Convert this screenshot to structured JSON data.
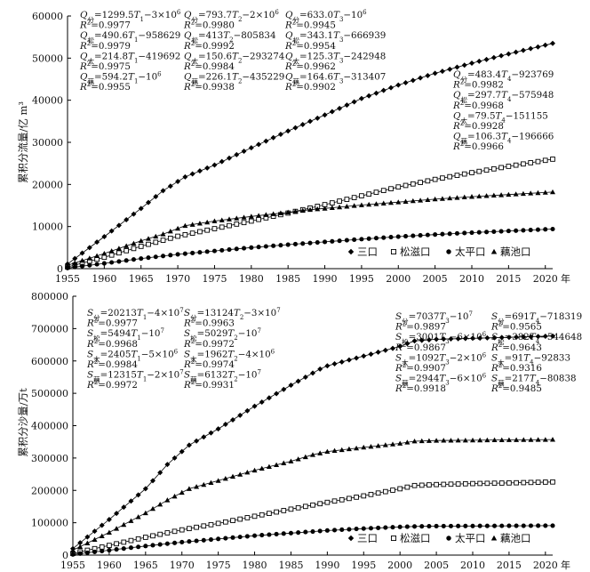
{
  "chart_data": [
    {
      "type": "scatter",
      "ylabel": "累积分流量/亿 m³",
      "ylim": [
        0,
        60000
      ],
      "yticks": [
        "0",
        "10000",
        "20000",
        "30000",
        "40000",
        "50000",
        "60000"
      ],
      "xlim": [
        1955,
        2021
      ],
      "xticks": [
        "1955",
        "1960",
        "1965",
        "1970",
        "1975",
        "1980",
        "1985",
        "1990",
        "1995",
        "2000",
        "2005",
        "2010",
        "2015",
        "2020"
      ],
      "x_unit": "年",
      "legend_position": "bottom-right",
      "legend": [
        "三口",
        "松滋口",
        "太平口",
        "藕池口"
      ],
      "series": [
        {
          "name": "三口",
          "marker": "diamond",
          "points": [
            [
              1955,
              1100
            ],
            [
              1960,
              7600
            ],
            [
              1965,
              14300
            ],
            [
              1968,
              18500
            ],
            [
              1971,
              21800
            ],
            [
              1975,
              24600
            ],
            [
              1980,
              28700
            ],
            [
              1985,
              32700
            ],
            [
              1990,
              36500
            ],
            [
              1995,
              40400
            ],
            [
              2000,
              43600
            ],
            [
              2005,
              46400
            ],
            [
              2010,
              48800
            ],
            [
              2015,
              51000
            ],
            [
              2021,
              53500
            ]
          ]
        },
        {
          "name": "松滋口",
          "marker": "square",
          "points": [
            [
              1955,
              400
            ],
            [
              1960,
              2700
            ],
            [
              1965,
              5300
            ],
            [
              1970,
              7700
            ],
            [
              1975,
              9500
            ],
            [
              1980,
              11300
            ],
            [
              1985,
              13200
            ],
            [
              1990,
              15200
            ],
            [
              1995,
              17300
            ],
            [
              2000,
              19400
            ],
            [
              2005,
              21200
            ],
            [
              2010,
              22800
            ],
            [
              2015,
              24300
            ],
            [
              2021,
              26000
            ]
          ]
        },
        {
          "name": "太平口",
          "marker": "circle",
          "points": [
            [
              1955,
              150
            ],
            [
              1960,
              1250
            ],
            [
              1965,
              2400
            ],
            [
              1970,
              3400
            ],
            [
              1975,
              4200
            ],
            [
              1980,
              5000
            ],
            [
              1985,
              5700
            ],
            [
              1990,
              6350
            ],
            [
              1995,
              7000
            ],
            [
              2000,
              7600
            ],
            [
              2005,
              8100
            ],
            [
              2010,
              8550
            ],
            [
              2015,
              8950
            ],
            [
              2021,
              9400
            ]
          ]
        },
        {
          "name": "藕池口",
          "marker": "triangle",
          "points": [
            [
              1955,
              800
            ],
            [
              1960,
              3600
            ],
            [
              1965,
              6600
            ],
            [
              1968,
              8200
            ],
            [
              1971,
              10200
            ],
            [
              1975,
              11300
            ],
            [
              1980,
              12400
            ],
            [
              1985,
              13400
            ],
            [
              1988,
              14000
            ],
            [
              1990,
              14300
            ],
            [
              1995,
              15100
            ],
            [
              2000,
              15800
            ],
            [
              2005,
              16500
            ],
            [
              2010,
              17100
            ],
            [
              2015,
              17600
            ],
            [
              2021,
              18200
            ]
          ]
        }
      ],
      "annotations": [
        {
          "id": "qA",
          "lines": [
            {
              "sym": "Q",
              "sub": "分",
              "rest": "=1299.5T",
              "sub2": "1",
              "tail": "−3×10",
              "sup": "6"
            },
            {
              "r2": "=0.9977"
            },
            {
              "sym": "Q",
              "sub": "松",
              "rest": "=490.6T",
              "sub2": "1",
              "tail": "−958629"
            },
            {
              "r2": "=0.9979"
            },
            {
              "sym": "Q",
              "sub": "太",
              "rest": "=214.8T",
              "sub2": "1",
              "tail": "−419692"
            },
            {
              "r2": "=0.9975"
            },
            {
              "sym": "Q",
              "sub": "藕",
              "rest": "=594.2T",
              "sub2": "1",
              "tail": "−10",
              "sup": "6"
            },
            {
              "r2": "=0.9955"
            }
          ]
        },
        {
          "id": "qB",
          "lines": [
            {
              "sym": "Q",
              "sub": "分",
              "rest": "=793.7T",
              "sub2": "2",
              "tail": "−2×10",
              "sup": "6"
            },
            {
              "r2": "=0.9980"
            },
            {
              "sym": "Q",
              "sub": "松",
              "rest": "=413T",
              "sub2": "2",
              "tail": "−805834"
            },
            {
              "r2": "=0.9992"
            },
            {
              "sym": "Q",
              "sub": "太",
              "rest": "=150.6T",
              "sub2": "2",
              "tail": "−293274"
            },
            {
              "r2": "=0.9984"
            },
            {
              "sym": "Q",
              "sub": "藕",
              "rest": "=226.1T",
              "sub2": "2",
              "tail": "−435229"
            },
            {
              "r2": "=0.9938"
            }
          ]
        },
        {
          "id": "qC",
          "lines": [
            {
              "sym": "Q",
              "sub": "分",
              "rest": "=633.0T",
              "sub2": "3",
              "tail": "−10",
              "sup": "6"
            },
            {
              "r2": "=0.9945"
            },
            {
              "sym": "Q",
              "sub": "松",
              "rest": "=343.1T",
              "sub2": "3",
              "tail": "−666939"
            },
            {
              "r2": "=0.9954"
            },
            {
              "sym": "Q",
              "sub": "太",
              "rest": "=125.3T",
              "sub2": "3",
              "tail": "−242948"
            },
            {
              "r2": "=0.9962"
            },
            {
              "sym": "Q",
              "sub": "藕",
              "rest": "=164.6T",
              "sub2": "3",
              "tail": "−313407"
            },
            {
              "r2": "=0.9902"
            }
          ]
        },
        {
          "id": "qD",
          "lines": [
            {
              "sym": "Q",
              "sub": "分",
              "rest": "=483.4T",
              "sub2": "4",
              "tail": "−923769"
            },
            {
              "r2": "=0.9982"
            },
            {
              "sym": "Q",
              "sub": "松",
              "rest": "=297.7T",
              "sub2": "4",
              "tail": "−575948"
            },
            {
              "r2": "=0.9968"
            },
            {
              "sym": "Q",
              "sub": "太",
              "rest": "=79.5T",
              "sub2": "4",
              "tail": "−151155"
            },
            {
              "r2": "=0.9928"
            },
            {
              "sym": "Q",
              "sub": "藕",
              "rest": "=106.3T",
              "sub2": "4",
              "tail": "−196666"
            },
            {
              "r2": "=0.9966"
            }
          ]
        }
      ]
    },
    {
      "type": "scatter",
      "ylabel": "累积分沙量/万t",
      "ylim": [
        0,
        800000
      ],
      "yticks": [
        "0",
        "100000",
        "200000",
        "300000",
        "400000",
        "500000",
        "600000",
        "700000",
        "800000"
      ],
      "xlim": [
        1955,
        2021
      ],
      "xticks": [
        "1955",
        "1960",
        "1965",
        "1970",
        "1975",
        "1980",
        "1985",
        "1990",
        "1995",
        "2000",
        "2005",
        "2010",
        "2015",
        "2020"
      ],
      "x_unit": "年",
      "legend_position": "bottom-right",
      "legend": [
        "三口",
        "松滋口",
        "太平口",
        "藕池口"
      ],
      "series": [
        {
          "name": "三口",
          "marker": "diamond",
          "points": [
            [
              1955,
              20000
            ],
            [
              1960,
              110000
            ],
            [
              1965,
              205000
            ],
            [
              1968,
              280000
            ],
            [
              1971,
              340000
            ],
            [
              1975,
              390000
            ],
            [
              1980,
              460000
            ],
            [
              1985,
              525000
            ],
            [
              1989,
              575000
            ],
            [
              1990,
              585000
            ],
            [
              1995,
              615000
            ],
            [
              2000,
              645000
            ],
            [
              2002,
              662000
            ],
            [
              2005,
              667000
            ],
            [
              2010,
              670000
            ],
            [
              2015,
              673000
            ],
            [
              2021,
              677000
            ]
          ]
        },
        {
          "name": "松滋口",
          "marker": "square",
          "points": [
            [
              1955,
              5000
            ],
            [
              1960,
              30000
            ],
            [
              1965,
              55000
            ],
            [
              1970,
              78000
            ],
            [
              1975,
              98000
            ],
            [
              1980,
              120000
            ],
            [
              1985,
              142000
            ],
            [
              1990,
              163000
            ],
            [
              1995,
              183000
            ],
            [
              2000,
              205000
            ],
            [
              2002,
              215000
            ],
            [
              2005,
              218000
            ],
            [
              2010,
              221000
            ],
            [
              2015,
              223000
            ],
            [
              2021,
              226000
            ]
          ]
        },
        {
          "name": "太平口",
          "marker": "circle",
          "points": [
            [
              1955,
              2000
            ],
            [
              1960,
              15000
            ],
            [
              1965,
              28000
            ],
            [
              1970,
              40000
            ],
            [
              1975,
              50000
            ],
            [
              1980,
              60000
            ],
            [
              1985,
              68000
            ],
            [
              1990,
              76000
            ],
            [
              1995,
              82000
            ],
            [
              2000,
              87000
            ],
            [
              2002,
              88500
            ],
            [
              2005,
              89500
            ],
            [
              2010,
              90000
            ],
            [
              2015,
              90500
            ],
            [
              2021,
              91000
            ]
          ]
        },
        {
          "name": "藕池口",
          "marker": "triangle",
          "points": [
            [
              1955,
              15000
            ],
            [
              1960,
              70000
            ],
            [
              1965,
              130000
            ],
            [
              1968,
              170000
            ],
            [
              1971,
              205000
            ],
            [
              1975,
              230000
            ],
            [
              1980,
              262000
            ],
            [
              1985,
              290000
            ],
            [
              1988,
              310000
            ],
            [
              1990,
              320000
            ],
            [
              1995,
              333000
            ],
            [
              2000,
              345000
            ],
            [
              2002,
              352000
            ],
            [
              2005,
              354000
            ],
            [
              2010,
              355000
            ],
            [
              2015,
              356000
            ],
            [
              2021,
              357000
            ]
          ]
        }
      ],
      "annotations": [
        {
          "id": "sA",
          "lines": [
            {
              "sym": "S",
              "sub": "分",
              "rest": "=20213T",
              "sub2": "1",
              "tail": "−4×10",
              "sup": "7"
            },
            {
              "r2": "=0.9977"
            },
            {
              "sym": "S",
              "sub": "松",
              "rest": "=5494T",
              "sub2": "1",
              "tail": "−10",
              "sup": "7"
            },
            {
              "r2": "=0.9968"
            },
            {
              "sym": "S",
              "sub": "太",
              "rest": "=2405T",
              "sub2": "1",
              "tail": "−5×10",
              "sup": "6"
            },
            {
              "r2": "=0.9984"
            },
            {
              "sym": "S",
              "sub": "藕",
              "rest": "=12315T",
              "sub2": "1",
              "tail": "−2×10",
              "sup": "7"
            },
            {
              "r2": "=0.9972"
            }
          ]
        },
        {
          "id": "sB",
          "lines": [
            {
              "sym": "S",
              "sub": "分",
              "rest": "=13124T",
              "sub2": "2",
              "tail": "−3×10",
              "sup": "7"
            },
            {
              "r2": "=0.9963"
            },
            {
              "sym": "S",
              "sub": "松",
              "rest": "=5029T",
              "sub2": "2",
              "tail": "−10",
              "sup": "7"
            },
            {
              "r2": "=0.9972"
            },
            {
              "sym": "S",
              "sub": "太",
              "rest": "=1962T",
              "sub2": "2",
              "tail": "−4×10",
              "sup": "6"
            },
            {
              "r2": "=0.9974"
            },
            {
              "sym": "S",
              "sub": "藕",
              "rest": "=6132T",
              "sub2": "2",
              "tail": "−10",
              "sup": "7"
            },
            {
              "r2": "=0.9931"
            }
          ]
        },
        {
          "id": "sC",
          "lines": [
            {
              "sym": "S",
              "sub": "分",
              "rest": "=7037T",
              "sub2": "3",
              "tail": "−10",
              "sup": "7"
            },
            {
              "r2": "=0.9897"
            },
            {
              "sym": "S",
              "sub": "松",
              "rest": "=3001T",
              "sub2": "3",
              "tail": "−6×10",
              "sup": "6"
            },
            {
              "r2": "=0.9867"
            },
            {
              "sym": "S",
              "sub": "太",
              "rest": "=1092T",
              "sub2": "3",
              "tail": "−2×10",
              "sup": "6"
            },
            {
              "r2": "=0.9907"
            },
            {
              "sym": "S",
              "sub": "藕",
              "rest": "=2944T",
              "sub2": "3",
              "tail": "−6×10",
              "sup": "6"
            },
            {
              "r2": "=0.9918"
            }
          ]
        },
        {
          "id": "sD",
          "lines": [
            {
              "sym": "S",
              "sub": "分",
              "rest": "=691T",
              "sub2": "4",
              "tail": "−718319"
            },
            {
              "r2": "=0.9565"
            },
            {
              "sym": "S",
              "sub": "松",
              "rest": "=382T",
              "sub2": "4",
              "tail": "−544648"
            },
            {
              "r2": "=0.9643"
            },
            {
              "sym": "S",
              "sub": "太",
              "rest": "=91T",
              "sub2": "4",
              "tail": "−92833"
            },
            {
              "r2": "=0.9316"
            },
            {
              "sym": "S",
              "sub": "藕",
              "rest": "=217T",
              "sub2": "4",
              "tail": "−80838"
            },
            {
              "r2": "=0.9485"
            }
          ]
        }
      ]
    }
  ]
}
